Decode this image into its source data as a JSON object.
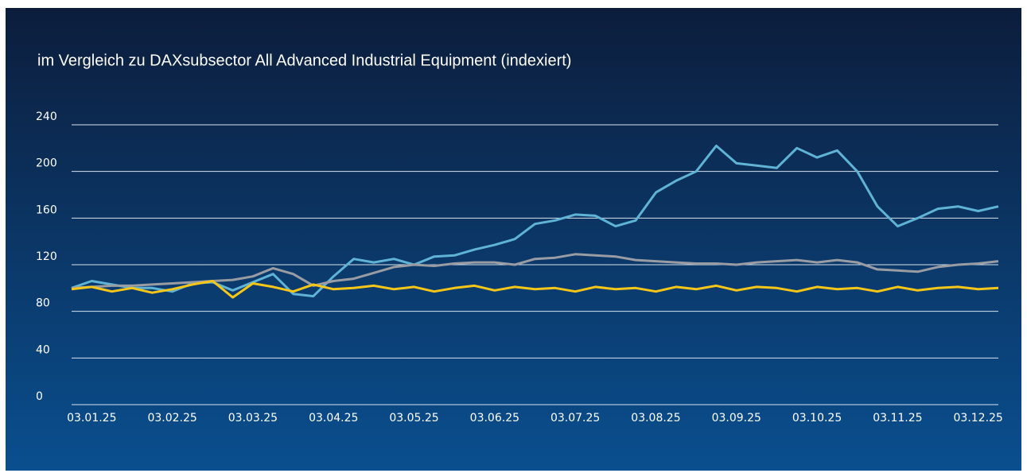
{
  "chart_data": {
    "type": "line",
    "title": "im Vergleich zu DAXsubsector All Advanced Industrial Equipment (indexiert)",
    "categories": [
      null,
      "03.01.25",
      null,
      null,
      null,
      "03.02.25",
      null,
      null,
      null,
      "03.03.25",
      null,
      null,
      null,
      "03.04.25",
      null,
      null,
      null,
      "03.05.25",
      null,
      null,
      null,
      "03.06.25",
      null,
      null,
      null,
      "03.07.25",
      null,
      null,
      null,
      "03.08.25",
      null,
      null,
      null,
      "03.09.25",
      null,
      null,
      null,
      "03.10.25",
      null,
      null,
      null,
      "03.11.25",
      null,
      null,
      null,
      "03.12.25",
      null
    ],
    "series": [
      {
        "color": "#5fb3d4",
        "values": [
          100,
          106,
          103,
          100,
          100,
          97,
          104,
          105,
          98,
          105,
          112,
          95,
          93,
          110,
          125,
          122,
          125,
          120,
          127,
          128,
          133,
          137,
          142,
          155,
          158,
          163,
          162,
          153,
          158,
          182,
          192,
          200,
          222,
          207,
          205,
          203,
          220,
          212,
          218,
          200,
          170,
          153,
          160,
          168,
          170,
          166,
          170
        ]
      },
      {
        "color": "#9a9ca3",
        "values": [
          100,
          101,
          102,
          102,
          103,
          104,
          105,
          106,
          107,
          110,
          117,
          112,
          102,
          106,
          108,
          113,
          118,
          120,
          119,
          121,
          122,
          122,
          120,
          125,
          126,
          129,
          128,
          127,
          124,
          123,
          122,
          121,
          121,
          120,
          122,
          123,
          124,
          122,
          124,
          122,
          116,
          115,
          114,
          118,
          120,
          121,
          123
        ]
      },
      {
        "color": "#f5c518",
        "values": [
          99,
          101,
          97,
          100,
          96,
          99,
          103,
          106,
          92,
          104,
          101,
          97,
          103,
          99,
          100,
          102,
          99,
          101,
          97,
          100,
          102,
          98,
          101,
          99,
          100,
          97,
          101,
          99,
          100,
          97,
          101,
          99,
          102,
          98,
          101,
          100,
          97,
          101,
          99,
          100,
          97,
          101,
          98,
          100,
          101,
          99,
          100
        ]
      }
    ],
    "ylim": [
      0,
      240
    ],
    "yticks": [
      0,
      40,
      80,
      120,
      160,
      200,
      240
    ],
    "grid": true
  }
}
